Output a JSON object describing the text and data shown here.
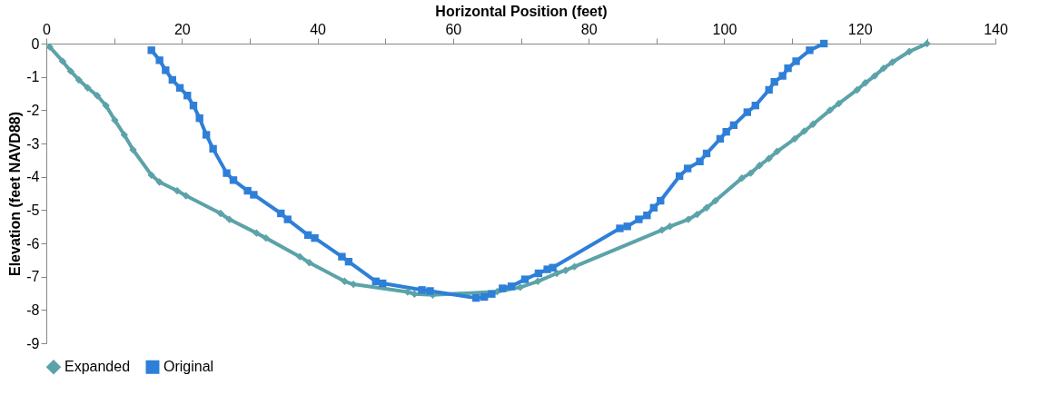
{
  "chart_data": {
    "type": "line",
    "xlabel": "Horizontal Position (feet)",
    "ylabel": "Elevation (feet NAVD88)",
    "xlim": [
      0,
      140
    ],
    "xticks": [
      0,
      {
        "value": 10,
        "label": null
      },
      20,
      {
        "value": 30,
        "label": null
      },
      40,
      {
        "value": 50,
        "label": null
      },
      60,
      {
        "value": 70,
        "label": null
      },
      80,
      {
        "value": 90,
        "label": null
      },
      100,
      {
        "value": 110,
        "label": null
      },
      120,
      {
        "value": 130,
        "label": null
      },
      140
    ],
    "ylim": [
      -9,
      0
    ],
    "yticks": [
      -9,
      -8,
      -7,
      -6,
      -5,
      -4,
      -3,
      -2,
      -1,
      0
    ],
    "grid": false,
    "legend": "bottom",
    "line_style": "solid",
    "series": [
      {
        "name": "Expanded",
        "color": "#5ba3a8",
        "marker": "diamond",
        "x": [
          0.5,
          2.4,
          3.6,
          4.8,
          6.1,
          7.5,
          8.8,
          10.1,
          11.5,
          12.8,
          15.5,
          16.7,
          19.3,
          20.6,
          25.7,
          27.0,
          31.0,
          32.4,
          37.4,
          38.8,
          44.0,
          45.3,
          53.3,
          54.3,
          57,
          66.5,
          69.9,
          72.5,
          75.3,
          76.6,
          77.9,
          90.8,
          92.0,
          94.7,
          96.0,
          97.4,
          98.7,
          102.6,
          103.9,
          105.2,
          106.6,
          107.8,
          110.4,
          111.8,
          113.1,
          115.6,
          116.9,
          119.6,
          120.8,
          122.2,
          123.5,
          124.8,
          127.3,
          129.9
        ],
        "values": [
          -0.1,
          -0.53,
          -0.83,
          -1.09,
          -1.33,
          -1.56,
          -1.86,
          -2.3,
          -2.74,
          -3.19,
          -3.95,
          -4.16,
          -4.42,
          -4.57,
          -5.1,
          -5.28,
          -5.69,
          -5.84,
          -6.4,
          -6.58,
          -7.14,
          -7.23,
          -7.46,
          -7.52,
          -7.55,
          -7.45,
          -7.32,
          -7.14,
          -6.9,
          -6.81,
          -6.7,
          -5.6,
          -5.49,
          -5.28,
          -5.13,
          -4.93,
          -4.72,
          -4.04,
          -3.89,
          -3.66,
          -3.45,
          -3.24,
          -2.86,
          -2.63,
          -2.42,
          -2.0,
          -1.8,
          -1.39,
          -1.18,
          -0.97,
          -0.74,
          -0.56,
          -0.24,
          0
        ]
      },
      {
        "name": "Original",
        "color": "#2e7fd8",
        "marker": "square",
        "x": [
          15.5,
          16.7,
          17.6,
          18.6,
          19.7,
          20.8,
          21.7,
          22.6,
          23.6,
          24.6,
          26.6,
          27.6,
          29.7,
          30.6,
          34.6,
          35.6,
          38.6,
          39.6,
          43.6,
          44.6,
          48.6,
          49.6,
          55.4,
          56.6,
          63.4,
          64.6,
          65.7,
          67.3,
          68.6,
          70.6,
          72.6,
          73.9,
          74.7,
          84.6,
          85.7,
          87.4,
          88.6,
          89.6,
          90.6,
          93.4,
          94.6,
          96.4,
          97.4,
          99.4,
          100.3,
          101.4,
          103.4,
          104.6,
          106.6,
          107.4,
          108.6,
          109.4,
          110.6,
          112.6,
          114.7
        ],
        "values": [
          -0.2,
          -0.5,
          -0.8,
          -1.09,
          -1.33,
          -1.56,
          -1.86,
          -2.24,
          -2.74,
          -3.16,
          -3.89,
          -4.1,
          -4.42,
          -4.54,
          -5.1,
          -5.28,
          -5.75,
          -5.84,
          -6.4,
          -6.55,
          -7.14,
          -7.2,
          -7.4,
          -7.43,
          -7.64,
          -7.61,
          -7.52,
          -7.35,
          -7.29,
          -7.08,
          -6.9,
          -6.78,
          -6.73,
          -5.55,
          -5.49,
          -5.28,
          -5.16,
          -4.93,
          -4.72,
          -3.98,
          -3.75,
          -3.54,
          -3.3,
          -2.86,
          -2.65,
          -2.45,
          -2.06,
          -1.86,
          -1.39,
          -1.15,
          -0.97,
          -0.74,
          -0.53,
          -0.2,
          0
        ]
      }
    ]
  }
}
